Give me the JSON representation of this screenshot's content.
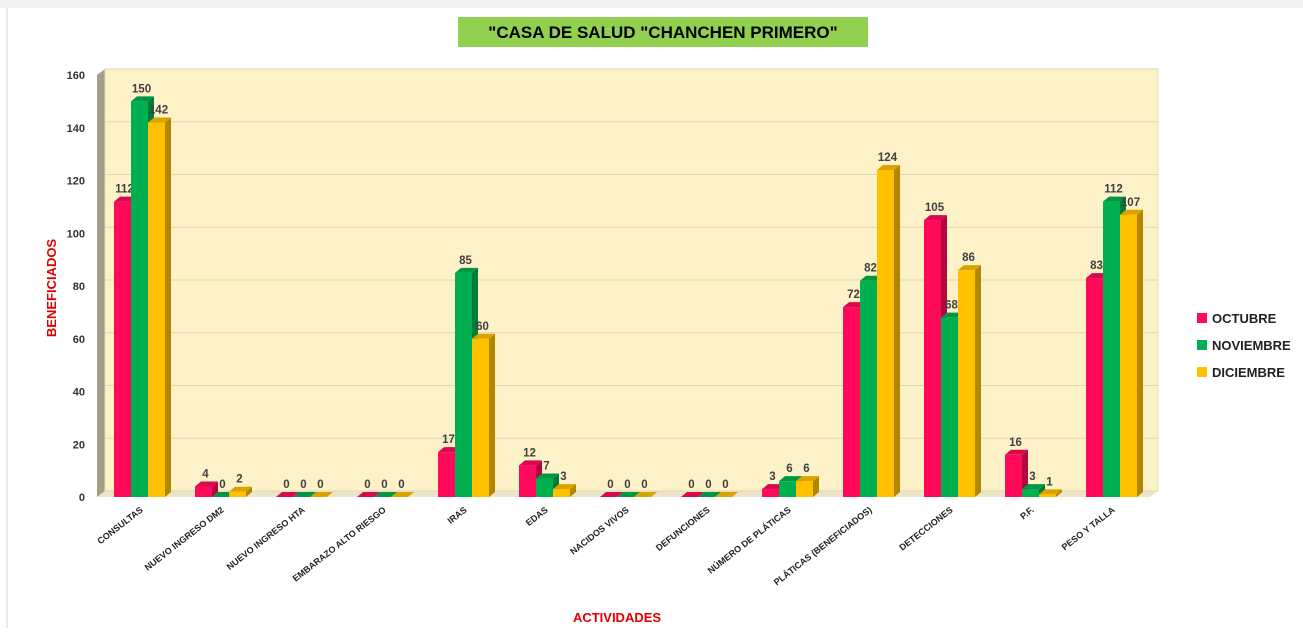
{
  "chart_data": {
    "type": "bar",
    "title": "\"CASA DE SALUD \"CHANCHEN PRIMERO\"",
    "x_label": "ACTIVIDADES",
    "y_label": "BENEFICIADOS",
    "categories": [
      "CONSULTAS",
      "NUEVO INGRESO DM2",
      "NUEVO INGRESO HTA",
      "EMBARAZO ALTO RIESGO",
      "IRAS",
      "EDAS",
      "NACIDOS VIVOS",
      "DEFUNCIONES",
      "NÚMERO DE PLÁTICAS",
      "PLÁTICAS (BENEFICIADOS)",
      "DETECCIONES",
      "P.F.",
      "PESO Y TALLA"
    ],
    "series": [
      {
        "name": "OCTUBRE",
        "color": "#ff0a5a",
        "values": [
          112,
          4,
          0,
          0,
          17,
          12,
          0,
          0,
          3,
          72,
          105,
          16,
          83
        ]
      },
      {
        "name": "NOVIEMBRE",
        "color": "#00b050",
        "values": [
          150,
          0,
          0,
          0,
          85,
          7,
          0,
          0,
          6,
          82,
          68,
          3,
          112
        ]
      },
      {
        "name": "DICIEMBRE",
        "color": "#ffc000",
        "values": [
          142,
          2,
          0,
          0,
          60,
          3,
          0,
          0,
          6,
          124,
          86,
          1,
          107
        ]
      }
    ],
    "ylim": [
      0,
      160
    ],
    "yticks": [
      0,
      20,
      40,
      60,
      80,
      100,
      120,
      140,
      160
    ],
    "grid": true,
    "legend": "right"
  }
}
